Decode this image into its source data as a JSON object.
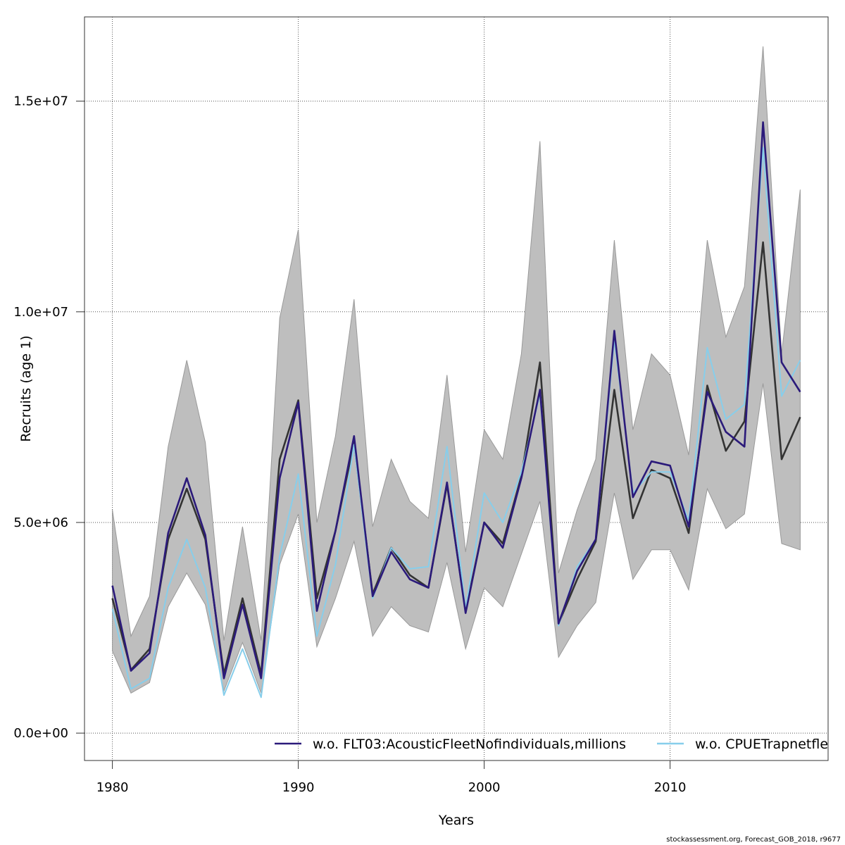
{
  "chart_data": {
    "type": "line",
    "title": "",
    "xlabel": "Years",
    "ylabel": "Recruits (age 1)",
    "xlim": [
      1978.5,
      2018.5
    ],
    "ylim": [
      -650000,
      17000000
    ],
    "x_ticks": [
      1980,
      1990,
      2000,
      2010
    ],
    "y_ticks": [
      0,
      5000000,
      10000000,
      15000000
    ],
    "y_tick_labels": [
      "0.0e+00",
      "5.0e+06",
      "1.0e+07",
      "1.5e+07"
    ],
    "grid": true,
    "legend_position": "bottom",
    "x": [
      1980,
      1981,
      1982,
      1983,
      1984,
      1985,
      1986,
      1987,
      1988,
      1989,
      1990,
      1991,
      1992,
      1993,
      1994,
      1995,
      1996,
      1997,
      1998,
      1999,
      2000,
      2001,
      2002,
      2003,
      2004,
      2005,
      2006,
      2007,
      2008,
      2009,
      2010,
      2011,
      2012,
      2013,
      2014,
      2015,
      2016,
      2017
    ],
    "band": {
      "upper": [
        5300000,
        2300000,
        3250000,
        6800000,
        8850000,
        6900000,
        2200000,
        4900000,
        2200000,
        9850000,
        11950000,
        5000000,
        7050000,
        10300000,
        4900000,
        6500000,
        5500000,
        5100000,
        8500000,
        4300000,
        7200000,
        6500000,
        9000000,
        14050000,
        3800000,
        5300000,
        6500000,
        11700000,
        7200000,
        9000000,
        8500000,
        6600000,
        11700000,
        9400000,
        10600000,
        16300000,
        9000000,
        12900000
      ],
      "lower": [
        1950000,
        950000,
        1200000,
        3000000,
        3800000,
        3050000,
        1000000,
        2150000,
        950000,
        4000000,
        5200000,
        2050000,
        3200000,
        4550000,
        2300000,
        3000000,
        2550000,
        2400000,
        4050000,
        2000000,
        3450000,
        3000000,
        4250000,
        5500000,
        1800000,
        2550000,
        3100000,
        5700000,
        3650000,
        4350000,
        4350000,
        3400000,
        5800000,
        4850000,
        5200000,
        8300000,
        4500000,
        4350000
      ]
    },
    "series": [
      {
        "name": "",
        "color": "#333333",
        "values": [
          3200000,
          1500000,
          2000000,
          4600000,
          5800000,
          4600000,
          1400000,
          3200000,
          1400000,
          6500000,
          7900000,
          3200000,
          4800000,
          6900000,
          3300000,
          4400000,
          3750000,
          3450000,
          5900000,
          2900000,
          5000000,
          4500000,
          6100000,
          8800000,
          2600000,
          3650000,
          4550000,
          8150000,
          5100000,
          6250000,
          6050000,
          4750000,
          8250000,
          6700000,
          7400000,
          11650000,
          6500000,
          7500000
        ]
      },
      {
        "name": "w.o. FLT03:AcousticFleetNofindividuals,millions",
        "color": "#2b1a7a",
        "values": [
          3500000,
          1480000,
          1900000,
          4750000,
          6050000,
          4700000,
          1300000,
          3050000,
          1300000,
          6050000,
          7850000,
          2900000,
          4800000,
          7050000,
          3250000,
          4300000,
          3650000,
          3450000,
          5950000,
          2850000,
          5000000,
          4400000,
          6050000,
          8150000,
          2600000,
          3850000,
          4600000,
          9550000,
          5600000,
          6450000,
          6350000,
          4900000,
          8100000,
          7150000,
          6800000,
          14500000,
          8800000,
          8100000
        ]
      },
      {
        "name": "w.o. CPUETrapnetfleet",
        "color": "#87ceeb",
        "values": [
          2950000,
          1050000,
          1300000,
          3450000,
          4600000,
          3450000,
          900000,
          2000000,
          850000,
          4200000,
          6150000,
          2300000,
          4000000,
          6850000,
          3200000,
          4400000,
          3900000,
          3950000,
          6800000,
          2950000,
          5700000,
          5000000,
          6200000,
          8050000,
          2550000,
          3950000,
          4600000,
          9350000,
          5700000,
          6200000,
          6200000,
          5050000,
          9150000,
          7450000,
          7800000,
          13900000,
          8000000,
          8850000
        ]
      }
    ]
  },
  "footer": "stockassessment.org, Forecast_GOB_2018, r9677"
}
